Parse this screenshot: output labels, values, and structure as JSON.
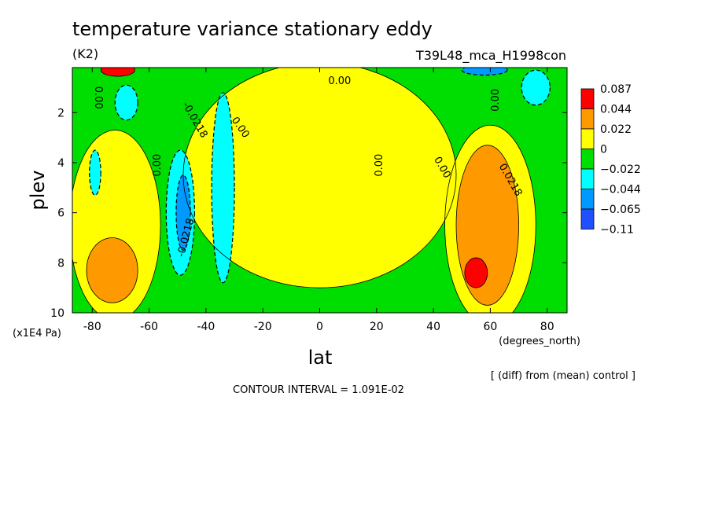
{
  "title": "temperature variance stationary eddy",
  "units": "(K2)",
  "run_name": "T39L48_mca_H1998con",
  "footer": {
    "contour_interval": "CONTOUR INTERVAL = 1.091E-02",
    "diff_note": "[ (diff) from (mean) control ]"
  },
  "chart_data": {
    "type": "contour",
    "xlabel": "lat",
    "xunits": "(degrees_north)",
    "ylabel": "plev",
    "yunits": "(x1E4 Pa)",
    "xlim": [
      -87,
      87
    ],
    "ylim": [
      10,
      0.2
    ],
    "y_inverted": true,
    "x_ticks": [
      -80,
      -60,
      -40,
      -20,
      0,
      20,
      40,
      60,
      80
    ],
    "y_ticks": [
      2,
      4,
      6,
      8,
      10
    ],
    "colorbar": {
      "labels": [
        "0.087",
        "0.044",
        "0.022",
        "0",
        "−0.022",
        "−0.044",
        "−0.065",
        "−0.11"
      ],
      "colors": [
        "#ff0000",
        "#ff9900",
        "#ffff00",
        "#00dd00",
        "#00ffff",
        "#0099ff",
        "#1f4fff"
      ]
    },
    "contour_labels": [
      {
        "text": "0.00",
        "lat": 7,
        "plev": 0.75,
        "rot": 0
      },
      {
        "text": "0.00",
        "lat": -78,
        "plev": 1.4,
        "rot": 90
      },
      {
        "text": "0.00",
        "lat": 62,
        "plev": 1.5,
        "rot": -90
      },
      {
        "text": "-0.0218",
        "lat": -44,
        "plev": 2.3,
        "rot": 60
      },
      {
        "text": "0.00",
        "lat": -28,
        "plev": 2.6,
        "rot": 55
      },
      {
        "text": "0.00",
        "lat": 21,
        "plev": 4.1,
        "rot": -90
      },
      {
        "text": "0.00",
        "lat": -57,
        "plev": 4.1,
        "rot": -90
      },
      {
        "text": "0.00",
        "lat": 43,
        "plev": 4.2,
        "rot": 60
      },
      {
        "text": "0.0218",
        "lat": 67,
        "plev": 4.7,
        "rot": 60
      },
      {
        "text": "-0.0218",
        "lat": -47,
        "plev": 7.0,
        "rot": -75
      }
    ],
    "fields": [
      {
        "level": "0.022",
        "color": "#ffff00",
        "lat": -72,
        "plev": 6.5,
        "rlat": 16,
        "rplev": 3.8
      },
      {
        "level": "0.022",
        "color": "#ffff00",
        "lat": 0,
        "plev": 4.5,
        "rlat": 48,
        "rplev": 4.5
      },
      {
        "level": "0.022",
        "color": "#ffff00",
        "lat": 60,
        "plev": 6.5,
        "rlat": 16,
        "rplev": 4.0
      },
      {
        "level": "0.044",
        "color": "#ff9900",
        "lat": -73,
        "plev": 8.3,
        "rlat": 9,
        "rplev": 1.3
      },
      {
        "level": "0.044",
        "color": "#ff9900",
        "lat": 59,
        "plev": 6.5,
        "rlat": 11,
        "rplev": 3.2
      },
      {
        "level": "0.087",
        "color": "#ff0000",
        "lat": 55,
        "plev": 8.4,
        "rlat": 4,
        "rplev": 0.6
      },
      {
        "level": "0.087",
        "color": "#ff0000",
        "lat": -71,
        "plev": 0.3,
        "rlat": 6,
        "rplev": 0.25
      },
      {
        "level": "-0.022",
        "color": "#00ffff",
        "lat": -34,
        "plev": 5.0,
        "rlat": 4,
        "rplev": 3.8
      },
      {
        "level": "-0.022",
        "color": "#00ffff",
        "lat": -49,
        "plev": 6.0,
        "rlat": 5,
        "rplev": 2.5
      },
      {
        "level": "-0.022",
        "color": "#00ffff",
        "lat": -68,
        "plev": 1.6,
        "rlat": 4,
        "rplev": 0.7
      },
      {
        "level": "-0.022",
        "color": "#00ffff",
        "lat": 76,
        "plev": 1.0,
        "rlat": 5,
        "rplev": 0.7
      },
      {
        "level": "-0.022",
        "color": "#00ffff",
        "lat": -79,
        "plev": 4.4,
        "rlat": 2,
        "rplev": 0.9
      },
      {
        "level": "-0.044",
        "color": "#0099ff",
        "lat": -48,
        "plev": 6.0,
        "rlat": 2.5,
        "rplev": 1.5
      },
      {
        "level": "-0.044",
        "color": "#0099ff",
        "lat": 58,
        "plev": 0.3,
        "rlat": 8,
        "rplev": 0.2
      }
    ]
  }
}
